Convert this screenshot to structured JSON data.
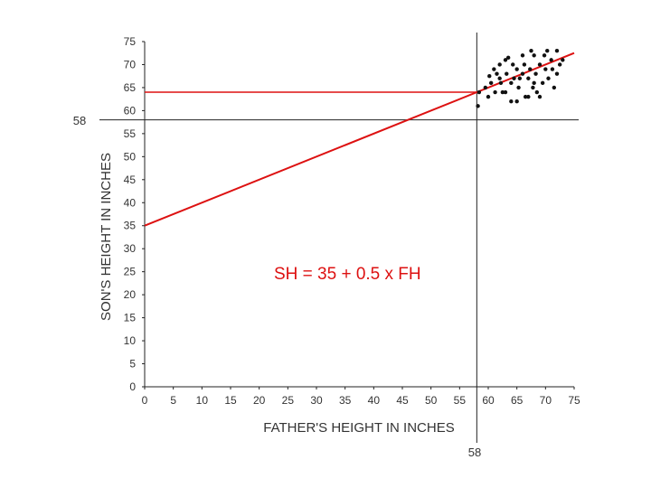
{
  "chart_data": {
    "type": "scatter",
    "title": "",
    "xlabel": "FATHER'S HEIGHT IN INCHES",
    "ylabel": "SON'S HEIGHT IN INCHES",
    "xlim": [
      0,
      75
    ],
    "ylim": [
      0,
      75
    ],
    "x_ticks": [
      0,
      5,
      10,
      15,
      20,
      25,
      30,
      35,
      40,
      45,
      50,
      55,
      60,
      65,
      70,
      75
    ],
    "y_ticks": [
      0,
      5,
      10,
      15,
      20,
      25,
      30,
      35,
      40,
      45,
      50,
      55,
      60,
      65,
      70,
      75
    ],
    "grid": false,
    "regression": {
      "intercept": 35,
      "slope": 0.5,
      "color": "#dd1111"
    },
    "equation_label": "SH = 35 + 0.5 x FH",
    "reference_lines": [
      {
        "axis": "x",
        "value": 58,
        "label": "58"
      },
      {
        "axis": "y",
        "value": 58,
        "label": "58"
      }
    ],
    "highlight_line": {
      "from_x": 0,
      "to_x": 58,
      "y": 64,
      "color": "#dd1111"
    },
    "point_color": "#111111",
    "points": [
      [
        58.2,
        61
      ],
      [
        58.4,
        64
      ],
      [
        60.0,
        63
      ],
      [
        60.5,
        66
      ],
      [
        61.0,
        69
      ],
      [
        61.2,
        64
      ],
      [
        61.5,
        68
      ],
      [
        62.0,
        70
      ],
      [
        62.0,
        67
      ],
      [
        62.2,
        66
      ],
      [
        63.0,
        64
      ],
      [
        63.0,
        71
      ],
      [
        63.2,
        68
      ],
      [
        64.0,
        66
      ],
      [
        64.0,
        62
      ],
      [
        64.3,
        70
      ],
      [
        64.5,
        67
      ],
      [
        65.0,
        69
      ],
      [
        65.0,
        62
      ],
      [
        65.3,
        65
      ],
      [
        66.0,
        68
      ],
      [
        66.0,
        72
      ],
      [
        66.3,
        70
      ],
      [
        67.0,
        67
      ],
      [
        67.0,
        63
      ],
      [
        67.3,
        69
      ],
      [
        67.5,
        73
      ],
      [
        68.0,
        66
      ],
      [
        68.0,
        72
      ],
      [
        68.3,
        68
      ],
      [
        68.5,
        64
      ],
      [
        69.0,
        70
      ],
      [
        69.5,
        66
      ],
      [
        69.8,
        72
      ],
      [
        70.0,
        69
      ],
      [
        70.3,
        73
      ],
      [
        70.5,
        67
      ],
      [
        71.0,
        71
      ],
      [
        71.5,
        65
      ],
      [
        72.0,
        68
      ],
      [
        72.0,
        73
      ],
      [
        72.5,
        70
      ],
      [
        73.0,
        71
      ],
      [
        59.5,
        65
      ],
      [
        60.2,
        67.5
      ],
      [
        62.5,
        64
      ],
      [
        66.5,
        63
      ],
      [
        69.0,
        63
      ],
      [
        63.5,
        71.5
      ],
      [
        65.5,
        67
      ],
      [
        71.2,
        69
      ],
      [
        67.8,
        65
      ]
    ]
  }
}
